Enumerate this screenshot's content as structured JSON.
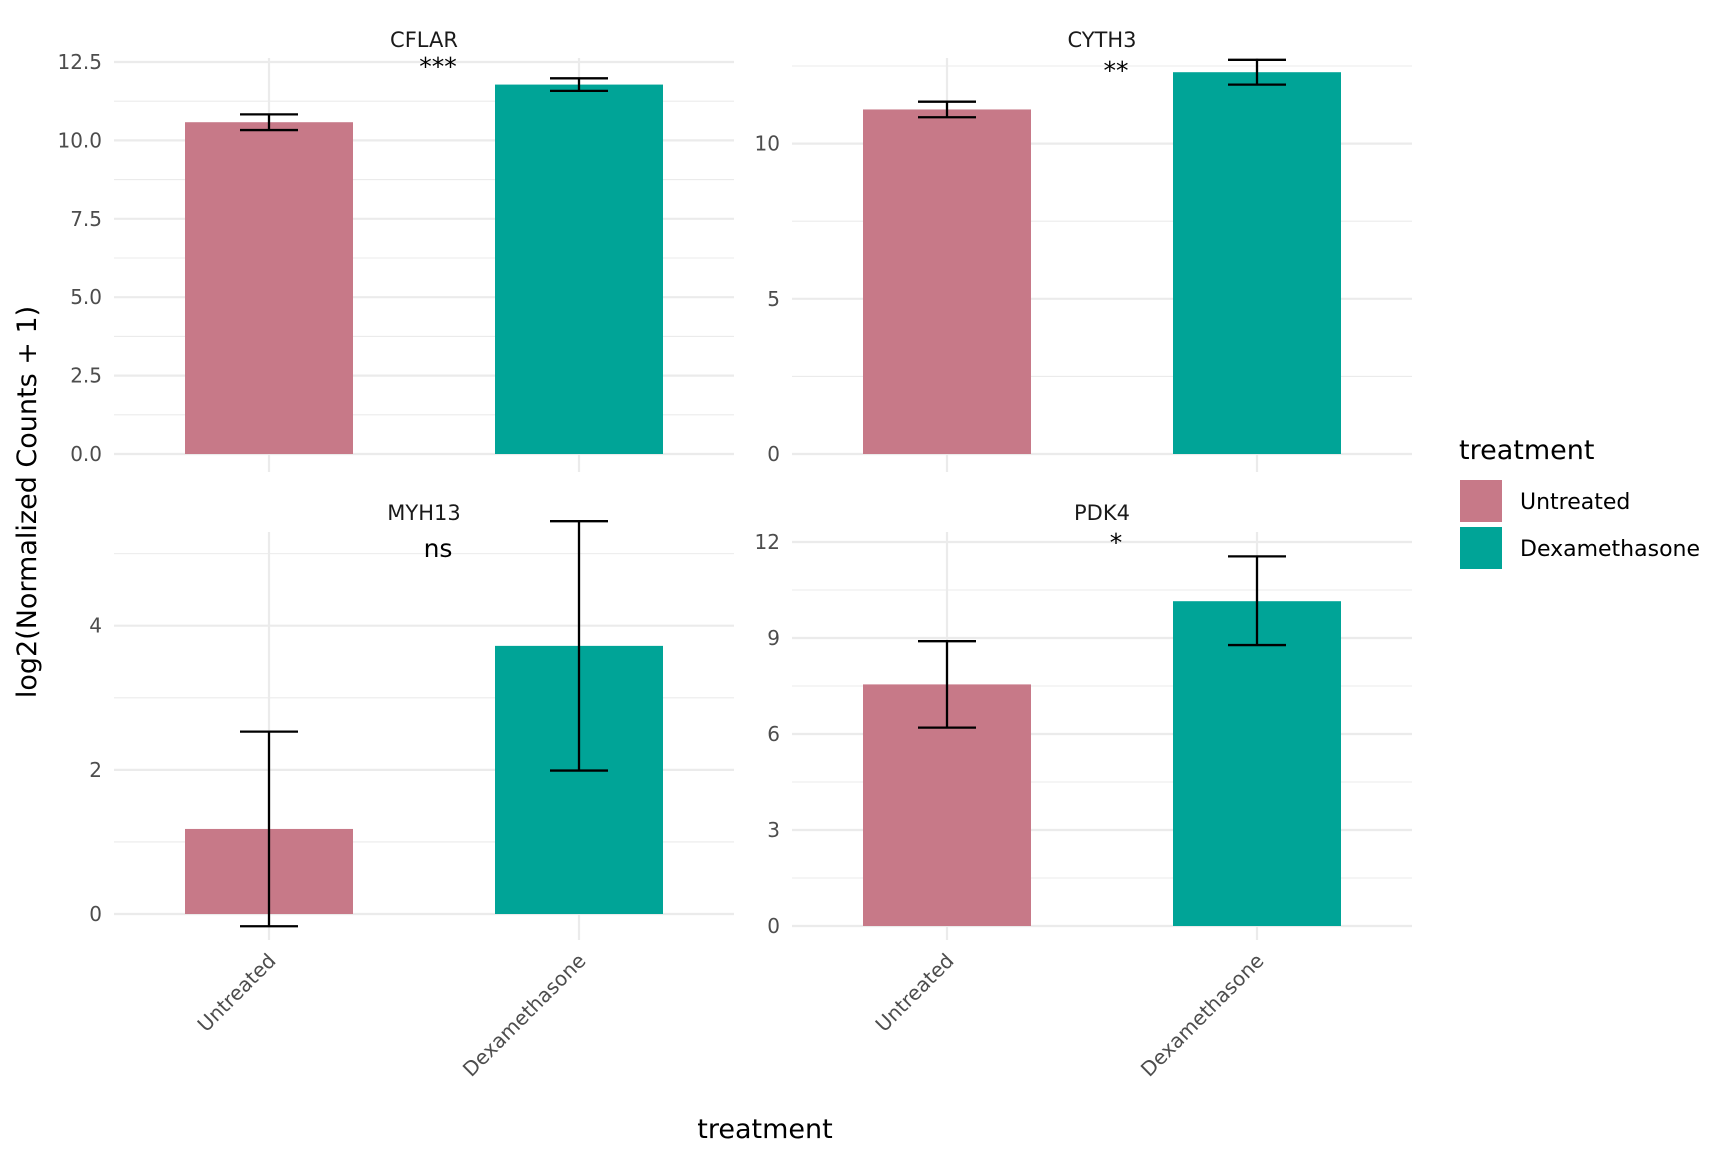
{
  "chart_data": {
    "type": "bar",
    "layout": "facet-grid-2x2",
    "xlabel": "treatment",
    "ylabel": "log2(Normalized Counts + 1)",
    "categories": [
      "Untreated",
      "Dexamethasone"
    ],
    "legend": {
      "title": "treatment",
      "position": "right",
      "items": [
        {
          "label": "Untreated",
          "color": "#c77988"
        },
        {
          "label": "Dexamethasone",
          "color": "#00a497"
        }
      ]
    },
    "grid": true,
    "facets": [
      {
        "title": "CFLAR",
        "significance": "***",
        "ylim": [
          0,
          12.5
        ],
        "yticks": [
          0.0,
          2.5,
          5.0,
          7.5,
          10.0,
          12.5
        ],
        "ytick_labels": [
          "0.0",
          "2.5",
          "5.0",
          "7.5",
          "10.0",
          "12.5"
        ],
        "values": [
          10.58,
          11.78
        ],
        "error_low": [
          10.33,
          11.58
        ],
        "error_high": [
          10.83,
          11.98
        ]
      },
      {
        "title": "CYTH3",
        "significance": "**",
        "ylim": [
          0,
          12.5
        ],
        "yticks": [
          0,
          5,
          10
        ],
        "ytick_labels": [
          "0",
          "5",
          "10"
        ],
        "values": [
          11.1,
          12.3
        ],
        "error_low": [
          10.85,
          11.9
        ],
        "error_high": [
          11.35,
          12.7
        ]
      },
      {
        "title": "MYH13",
        "significance": "ns",
        "ylim": [
          -0.2,
          5.3
        ],
        "yticks": [
          0,
          2,
          4
        ],
        "ytick_labels": [
          "0",
          "2",
          "4"
        ],
        "values": [
          1.18,
          3.72
        ],
        "error_low": [
          -0.17,
          1.99
        ],
        "error_high": [
          2.53,
          5.45
        ]
      },
      {
        "title": "PDK4",
        "significance": "*",
        "ylim": [
          0,
          12
        ],
        "yticks": [
          0,
          3,
          6,
          9,
          12
        ],
        "ytick_labels": [
          "0",
          "3",
          "6",
          "9",
          "12"
        ],
        "values": [
          7.55,
          10.15
        ],
        "error_low": [
          6.2,
          8.78
        ],
        "error_high": [
          8.9,
          11.55
        ]
      }
    ]
  }
}
